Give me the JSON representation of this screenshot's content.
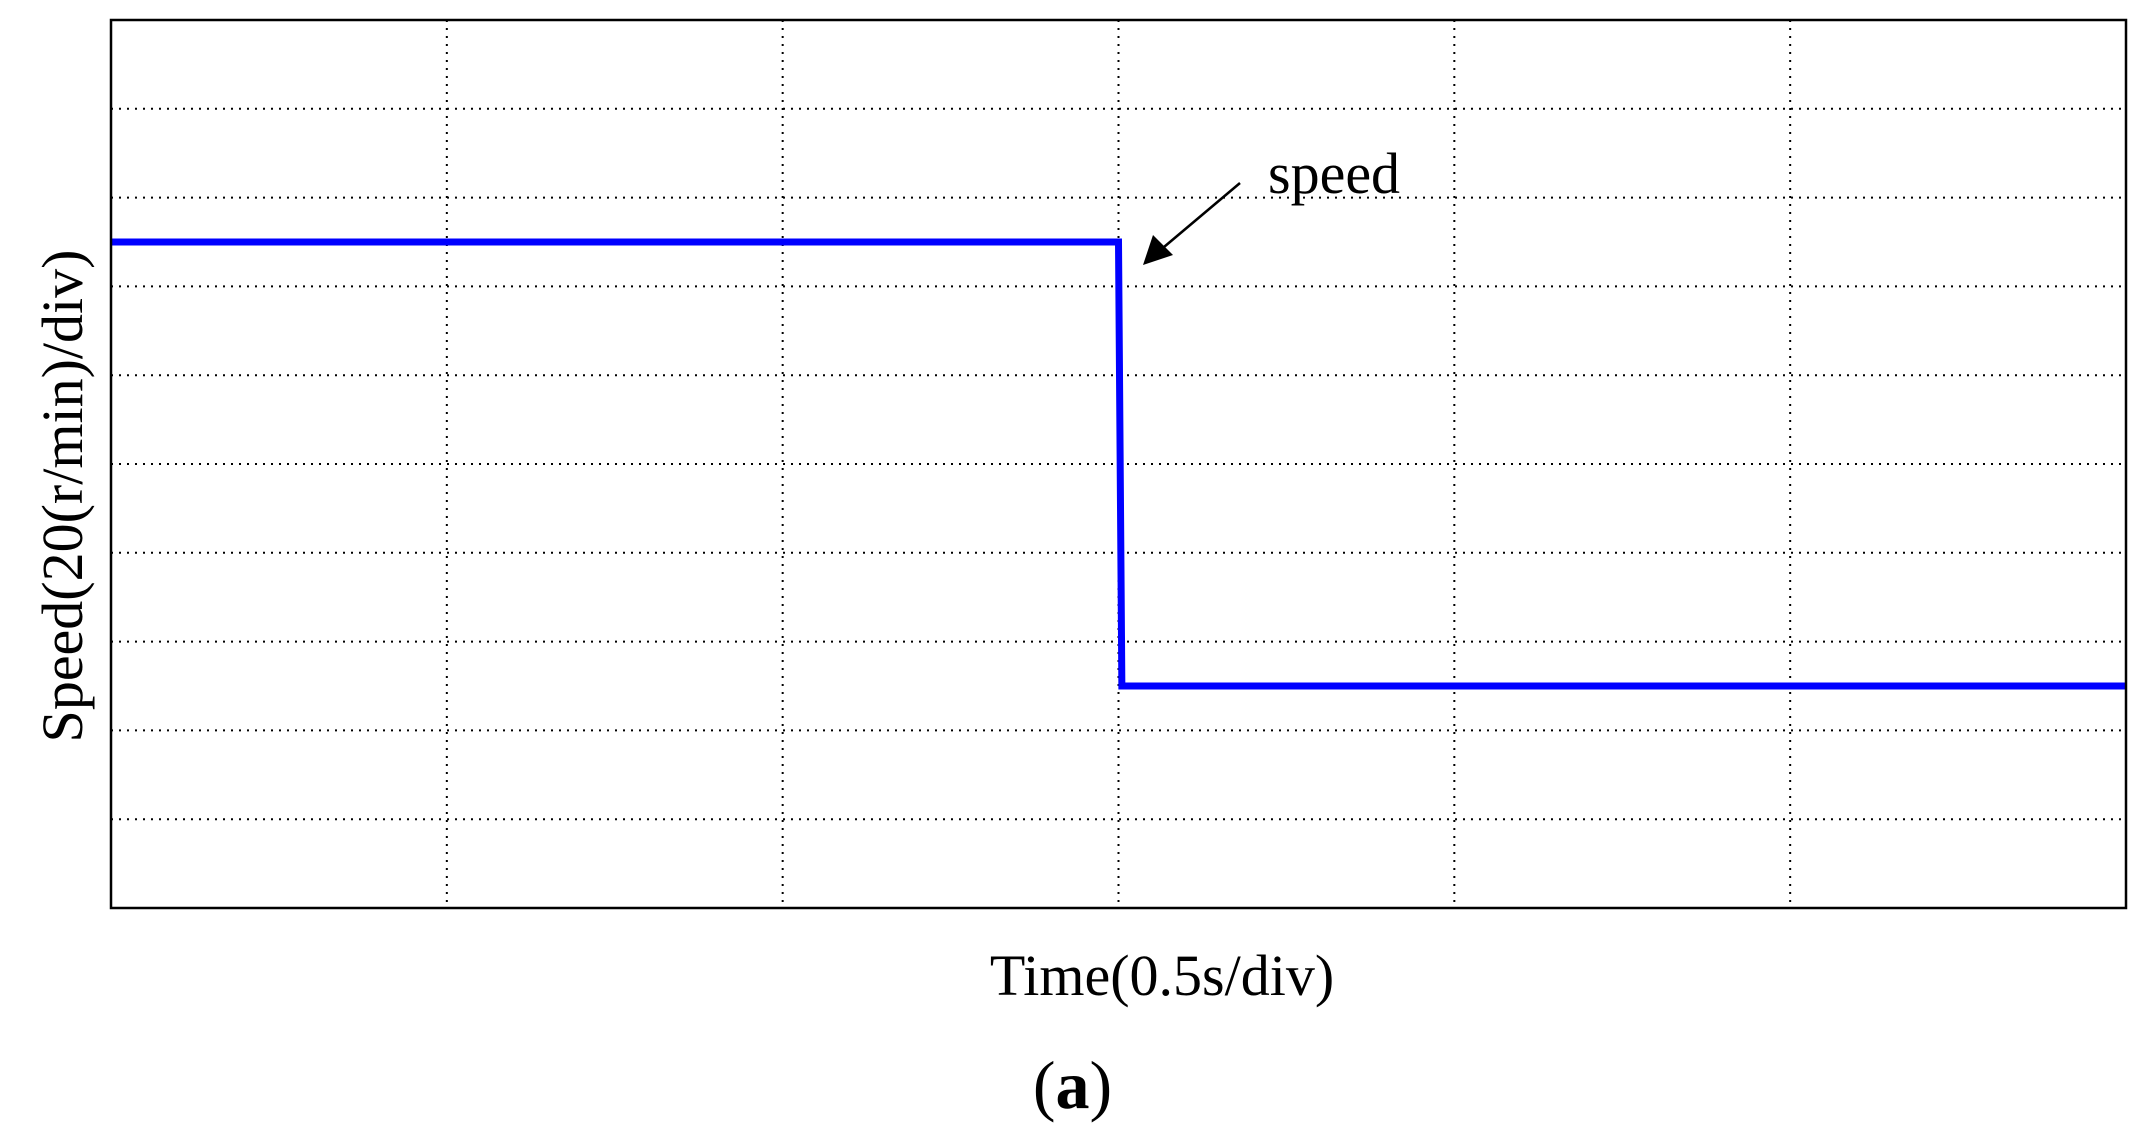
{
  "chart_data": {
    "type": "line",
    "xlabel": "Time(0.5s/div)",
    "ylabel": "Speed(20(r/min)/div)",
    "xlim": [
      0,
      6
    ],
    "ylim": [
      0,
      10
    ],
    "x_divisions": 6,
    "y_divisions": 10,
    "grid": true,
    "series": [
      {
        "color": "#0000ff",
        "x": [
          0,
          3.0,
          3.01,
          6
        ],
        "y": [
          7.5,
          7.5,
          2.5,
          2.5
        ]
      }
    ],
    "annotations": [
      {
        "text": "speed",
        "arrow_to": [
          3.07,
          7.3
        ]
      }
    ]
  },
  "panel": {
    "open": "(",
    "letter": "a",
    "close": ")"
  }
}
